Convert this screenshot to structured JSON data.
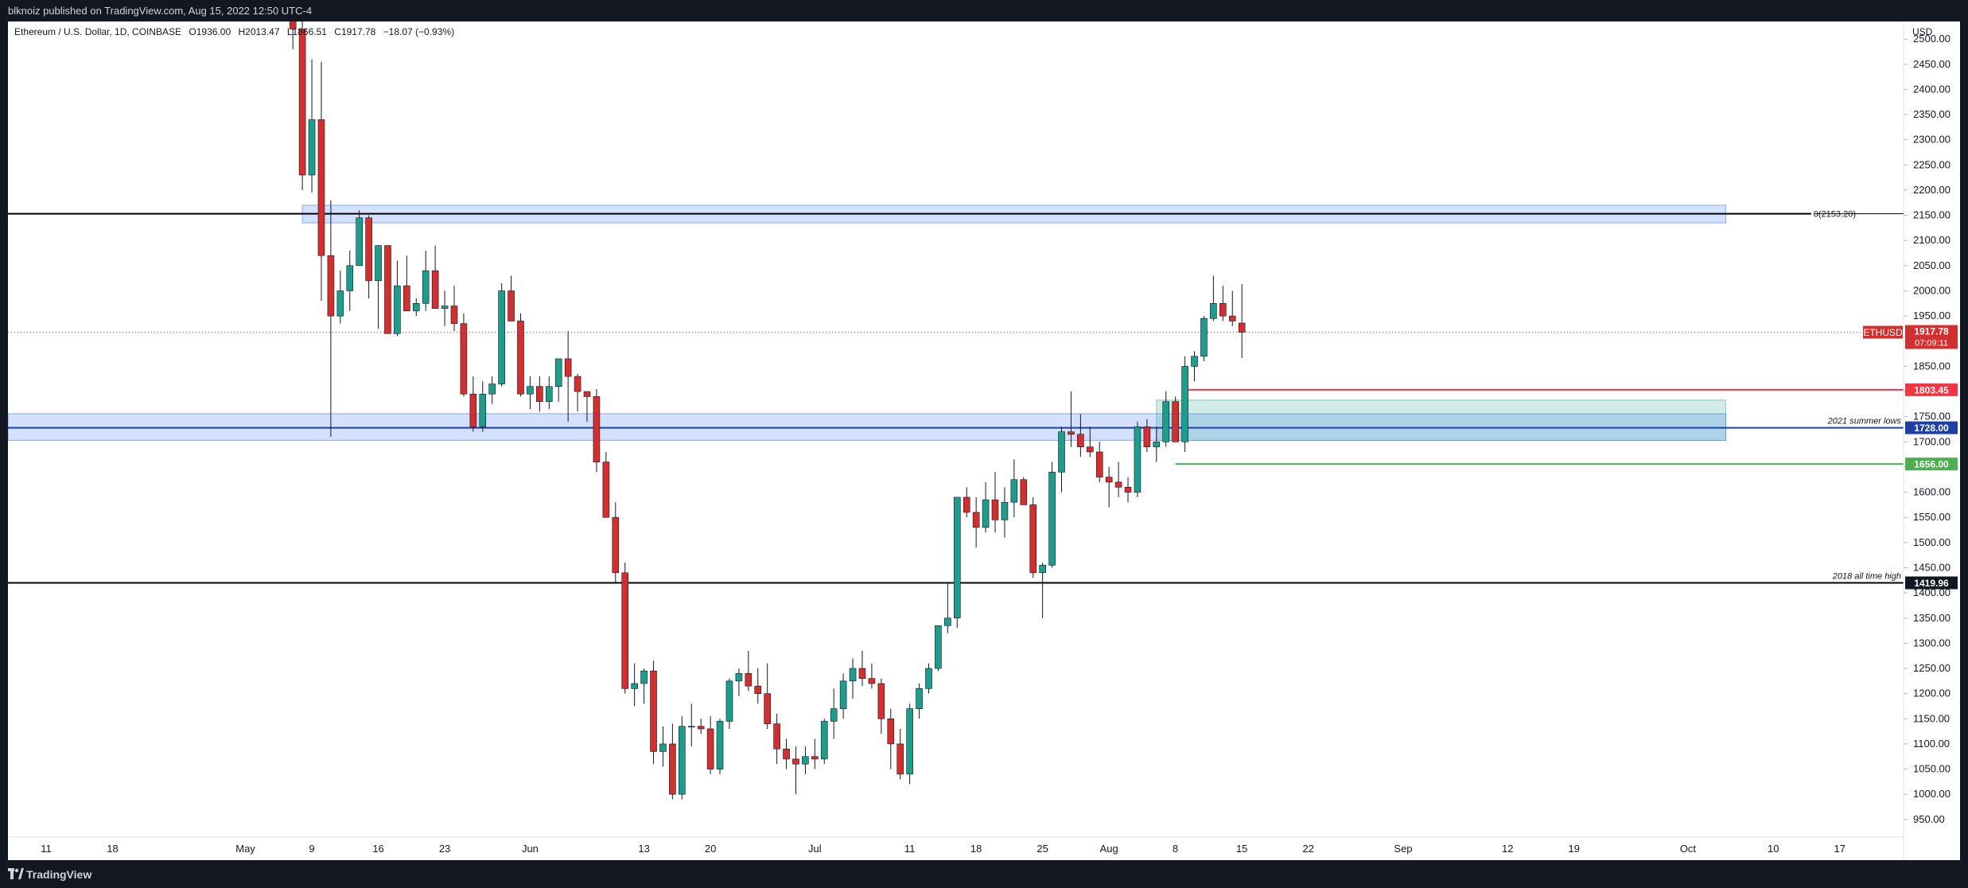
{
  "header": {
    "publish_line": "blknoiz published on TradingView.com, Aug 15, 2022 12:50 UTC-4"
  },
  "legend": {
    "symbol": "Ethereum / U.S. Dollar, 1D, COINBASE",
    "open": "O1936.00",
    "high": "H2013.47",
    "low": "L1866.51",
    "close": "C1917.78",
    "change": "−18.07 (−0.93%)"
  },
  "footer": {
    "brand": "TradingView"
  },
  "colors": {
    "up": "#26a69a",
    "down": "#ef5350",
    "up_body": "#1e9c8c",
    "down_body": "#d32f2f",
    "zone": "#2962ff",
    "gain_zone": "#2ea38c",
    "price_line": "#f23645",
    "support_green": "#4caf50",
    "level_blue": "#1e3fa8"
  },
  "chart_data": {
    "type": "candlestick",
    "title": "Ethereum / U.S. Dollar, 1D, COINBASE",
    "currency": "USD",
    "y_range": [
      915,
      2535
    ],
    "y_ticks": [
      950,
      1000,
      1050,
      1100,
      1150,
      1200,
      1250,
      1300,
      1350,
      1400,
      1450,
      1500,
      1550,
      1600,
      1650,
      1700,
      1750,
      1800,
      1850,
      1900,
      1950,
      2000,
      2050,
      2100,
      2150,
      2200,
      2250,
      2300,
      2350,
      2400,
      2450,
      2500
    ],
    "x_ticks": [
      {
        "label": "11",
        "date": "2022-04-11"
      },
      {
        "label": "18",
        "date": "2022-04-18"
      },
      {
        "label": "May",
        "date": "2022-05-02"
      },
      {
        "label": "9",
        "date": "2022-05-09"
      },
      {
        "label": "16",
        "date": "2022-05-16"
      },
      {
        "label": "23",
        "date": "2022-05-23"
      },
      {
        "label": "Jun",
        "date": "2022-06-01"
      },
      {
        "label": "13",
        "date": "2022-06-13"
      },
      {
        "label": "20",
        "date": "2022-06-20"
      },
      {
        "label": "Jul",
        "date": "2022-07-01"
      },
      {
        "label": "11",
        "date": "2022-07-11"
      },
      {
        "label": "18",
        "date": "2022-07-18"
      },
      {
        "label": "25",
        "date": "2022-07-25"
      },
      {
        "label": "Aug",
        "date": "2022-08-01"
      },
      {
        "label": "8",
        "date": "2022-08-08"
      },
      {
        "label": "15",
        "date": "2022-08-15"
      },
      {
        "label": "22",
        "date": "2022-08-22"
      },
      {
        "label": "Sep",
        "date": "2022-09-01"
      },
      {
        "label": "12",
        "date": "2022-09-12"
      },
      {
        "label": "19",
        "date": "2022-09-19"
      },
      {
        "label": "Oct",
        "date": "2022-10-01"
      },
      {
        "label": "10",
        "date": "2022-10-10"
      },
      {
        "label": "17",
        "date": "2022-10-17"
      }
    ],
    "candles_first_date": "2022-05-07",
    "candles": [
      [
        2605,
        2640,
        2480,
        2520
      ],
      [
        2520,
        2560,
        2200,
        2230
      ],
      [
        2230,
        2460,
        2195,
        2340
      ],
      [
        2340,
        2455,
        1980,
        2070
      ],
      [
        2070,
        2180,
        1710,
        1950
      ],
      [
        1950,
        2040,
        1935,
        2000
      ],
      [
        2000,
        2080,
        1960,
        2050
      ],
      [
        2050,
        2160,
        2050,
        2145
      ],
      [
        2145,
        2150,
        1985,
        2020
      ],
      [
        2020,
        2090,
        1925,
        2090
      ],
      [
        2090,
        2090,
        1915,
        1915
      ],
      [
        1915,
        2060,
        1910,
        2010
      ],
      [
        2010,
        2070,
        1960,
        1960
      ],
      [
        1960,
        1985,
        1950,
        1975
      ],
      [
        1975,
        2080,
        1960,
        2040
      ],
      [
        2040,
        2090,
        1970,
        1965
      ],
      [
        1965,
        2000,
        1930,
        1970
      ],
      [
        1970,
        2010,
        1920,
        1935
      ],
      [
        1935,
        1955,
        1790,
        1795
      ],
      [
        1795,
        1830,
        1720,
        1730
      ],
      [
        1730,
        1820,
        1720,
        1795
      ],
      [
        1795,
        1830,
        1775,
        1815
      ],
      [
        1815,
        2015,
        1810,
        2000
      ],
      [
        2000,
        2030,
        1940,
        1940
      ],
      [
        1940,
        1955,
        1790,
        1795
      ],
      [
        1795,
        1830,
        1765,
        1810
      ],
      [
        1810,
        1830,
        1760,
        1780
      ],
      [
        1780,
        1830,
        1765,
        1810
      ],
      [
        1810,
        1860,
        1780,
        1865
      ],
      [
        1865,
        1920,
        1740,
        1830
      ],
      [
        1830,
        1835,
        1760,
        1800
      ],
      [
        1800,
        1800,
        1740,
        1790
      ],
      [
        1790,
        1805,
        1640,
        1660
      ],
      [
        1660,
        1680,
        1560,
        1550
      ],
      [
        1550,
        1580,
        1420,
        1440
      ],
      [
        1440,
        1460,
        1200,
        1210
      ],
      [
        1210,
        1260,
        1175,
        1220
      ],
      [
        1220,
        1250,
        1180,
        1245
      ],
      [
        1245,
        1265,
        1060,
        1085
      ],
      [
        1085,
        1135,
        1055,
        1100
      ],
      [
        1100,
        1140,
        990,
        1000
      ],
      [
        1000,
        1155,
        990,
        1135
      ],
      [
        1135,
        1180,
        1095,
        1135
      ],
      [
        1135,
        1150,
        1120,
        1130
      ],
      [
        1130,
        1155,
        1040,
        1050
      ],
      [
        1050,
        1150,
        1040,
        1145
      ],
      [
        1145,
        1230,
        1130,
        1225
      ],
      [
        1225,
        1250,
        1195,
        1240
      ],
      [
        1240,
        1285,
        1205,
        1215
      ],
      [
        1215,
        1250,
        1180,
        1200
      ],
      [
        1200,
        1260,
        1130,
        1140
      ],
      [
        1140,
        1160,
        1060,
        1090
      ],
      [
        1090,
        1110,
        1050,
        1070
      ],
      [
        1070,
        1095,
        1000,
        1060
      ],
      [
        1060,
        1095,
        1040,
        1075
      ],
      [
        1075,
        1110,
        1050,
        1070
      ],
      [
        1070,
        1150,
        1060,
        1145
      ],
      [
        1145,
        1210,
        1110,
        1170
      ],
      [
        1170,
        1240,
        1150,
        1225
      ],
      [
        1225,
        1270,
        1190,
        1250
      ],
      [
        1250,
        1285,
        1215,
        1230
      ],
      [
        1230,
        1260,
        1210,
        1220
      ],
      [
        1220,
        1230,
        1120,
        1150
      ],
      [
        1150,
        1170,
        1050,
        1100
      ],
      [
        1100,
        1130,
        1030,
        1040
      ],
      [
        1040,
        1180,
        1020,
        1170
      ],
      [
        1170,
        1220,
        1150,
        1210
      ],
      [
        1210,
        1260,
        1200,
        1250
      ],
      [
        1250,
        1335,
        1245,
        1335
      ],
      [
        1335,
        1420,
        1320,
        1350
      ],
      [
        1350,
        1590,
        1330,
        1590
      ],
      [
        1590,
        1610,
        1550,
        1560
      ],
      [
        1560,
        1590,
        1490,
        1530
      ],
      [
        1530,
        1620,
        1520,
        1585
      ],
      [
        1585,
        1640,
        1520,
        1545
      ],
      [
        1545,
        1610,
        1510,
        1580
      ],
      [
        1580,
        1665,
        1550,
        1625
      ],
      [
        1625,
        1630,
        1580,
        1575
      ],
      [
        1575,
        1590,
        1430,
        1440
      ],
      [
        1440,
        1460,
        1350,
        1455
      ],
      [
        1455,
        1660,
        1450,
        1640
      ],
      [
        1640,
        1730,
        1600,
        1720
      ],
      [
        1720,
        1800,
        1690,
        1715
      ],
      [
        1715,
        1755,
        1670,
        1690
      ],
      [
        1690,
        1730,
        1670,
        1680
      ],
      [
        1680,
        1700,
        1620,
        1630
      ],
      [
        1630,
        1650,
        1570,
        1620
      ],
      [
        1620,
        1660,
        1590,
        1610
      ],
      [
        1610,
        1630,
        1580,
        1600
      ],
      [
        1600,
        1740,
        1590,
        1730
      ],
      [
        1730,
        1745,
        1680,
        1690
      ],
      [
        1690,
        1730,
        1660,
        1700
      ],
      [
        1700,
        1800,
        1690,
        1780
      ],
      [
        1780,
        1790,
        1700,
        1700
      ],
      [
        1700,
        1870,
        1680,
        1850
      ],
      [
        1850,
        1880,
        1820,
        1870
      ],
      [
        1870,
        1950,
        1860,
        1945
      ],
      [
        1945,
        2030,
        1940,
        1975
      ],
      [
        1975,
        2010,
        1940,
        1950
      ],
      [
        1950,
        2000,
        1930,
        1940
      ],
      [
        1936,
        2013.47,
        1866.51,
        1917.78
      ]
    ],
    "zones": [
      {
        "low": 2135,
        "high": 2170,
        "from": "2022-05-08",
        "to": "2022-10-05"
      },
      {
        "low": 1703,
        "high": 1756,
        "from": "2022-04-01",
        "to": "2022-10-05",
        "label": "2021 summer lows"
      },
      {
        "low": 1703,
        "high": 1783,
        "from": "2022-08-06",
        "to": "2022-10-05"
      }
    ],
    "hlines": [
      {
        "price": 2153.2,
        "label": "0(2153.20)",
        "color": "#000000",
        "from": "2022-04-01",
        "to": "2022-10-14"
      },
      {
        "price": 1728.0,
        "label": "1728.00",
        "color": "#1e3fa8"
      },
      {
        "price": 1419.96,
        "label": "1419.96",
        "annotation": "2018 all time high",
        "color": "#000000"
      },
      {
        "price": 1803.45,
        "label": "1803.45",
        "color": "#f23645",
        "from": "2022-08-09"
      },
      {
        "price": 1656.0,
        "label": "1656.00",
        "color": "#4caf50",
        "from": "2022-08-08"
      }
    ],
    "last_price": {
      "symbol": "ETHUSD",
      "value": "1917.78",
      "countdown": "07:09:11"
    }
  }
}
